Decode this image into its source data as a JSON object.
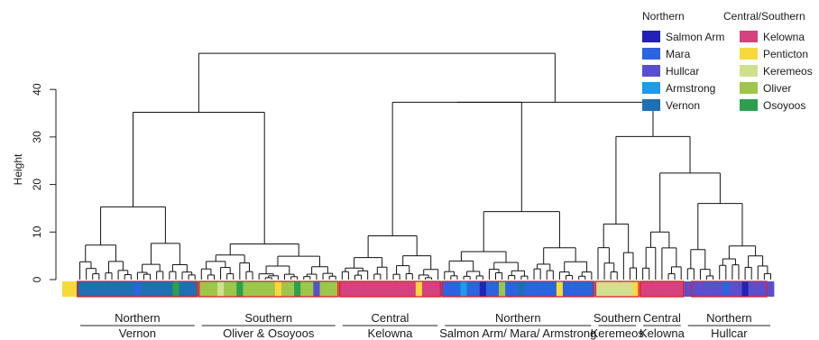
{
  "chart_data": {
    "type": "dendrogram",
    "ylabel": "Height",
    "ylim": [
      0,
      48
    ],
    "y_ticks": [
      0,
      10,
      20,
      30,
      40
    ],
    "legend": {
      "columns": [
        {
          "title": "Northern",
          "entries": [
            {
              "label": "Salmon Arm",
              "color": "#2222b8"
            },
            {
              "label": "Mara",
              "color": "#2b63e0"
            },
            {
              "label": "Hullcar",
              "color": "#5a4fcf"
            },
            {
              "label": "Armstrong",
              "color": "#1e9ae8"
            },
            {
              "label": "Vernon",
              "color": "#1f6fb4"
            }
          ]
        },
        {
          "title": "Central/Southern",
          "entries": [
            {
              "label": "Kelowna",
              "color": "#d4437f"
            },
            {
              "label": "Penticton",
              "color": "#f7d93a"
            },
            {
              "label": "Keremeos",
              "color": "#cfe08e"
            },
            {
              "label": "Oliver",
              "color": "#9dc64b"
            },
            {
              "label": "Osoyoos",
              "color": "#2e9e4f"
            }
          ]
        }
      ]
    },
    "clusters": [
      {
        "region": "Northern",
        "site": "Vernon",
        "leaves": 19,
        "color": "#1f6fb4",
        "merge_height": 15.3
      },
      {
        "region": "Southern",
        "site": "Oliver & Osoyoos",
        "leaves": 22,
        "color": "#9dc64b",
        "merge_height": 7.5
      },
      {
        "region": "Central",
        "site": "Kelowna",
        "leaves": 16,
        "color": "#d4437f",
        "merge_height": 9.2
      },
      {
        "region": "Northern",
        "site": "Salmon Arm/ Mara/ Armstrong",
        "leaves": 24,
        "color": "#2b63e0",
        "merge_height": 14.3
      },
      {
        "region": "Southern",
        "site": "Keremeos",
        "leaves": 7,
        "color": "#cfe08e",
        "merge_height": 11.7
      },
      {
        "region": "Central",
        "site": "Kelowna",
        "leaves": 7,
        "color": "#d4437f",
        "merge_height": 10
      },
      {
        "region": "Northern",
        "site": "Hullcar",
        "leaves": 14,
        "color": "#5a4fcf",
        "merge_height": 16
      }
    ],
    "merges": [
      {
        "left": [
          0,
          1
        ],
        "height": 35.2
      },
      {
        "left": [
          2,
          3
        ],
        "height": 37.3
      },
      {
        "left": [
          4,
          5
        ],
        "height": 30.1
      },
      {
        "left": "k+h",
        "height": 22.4
      },
      {
        "left": "all",
        "height": 47.6
      }
    ]
  }
}
